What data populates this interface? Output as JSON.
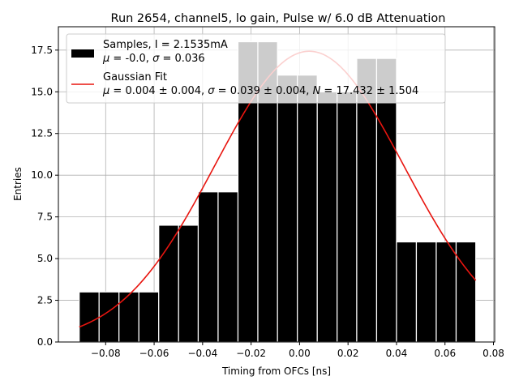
{
  "chart_data": {
    "type": "bar",
    "title": "Run 2654, channel5, lo gain, Pulse w/ 6.0 dB Attenuation",
    "xlabel": "Timing from OFCs [ns]",
    "ylabel": "Entries",
    "xlim": [
      -0.0995,
      0.0805
    ],
    "ylim": [
      0,
      18.9
    ],
    "grid": true,
    "legend_position": "top-left",
    "x_ticks": [
      -0.08,
      -0.06,
      -0.04,
      -0.02,
      0.0,
      0.02,
      0.04,
      0.06,
      0.08
    ],
    "x_tick_labels": [
      "−0.08",
      "−0.06",
      "−0.04",
      "−0.02",
      "0.00",
      "0.02",
      "0.04",
      "0.06",
      "0.08"
    ],
    "y_ticks": [
      0.0,
      2.5,
      5.0,
      7.5,
      10.0,
      12.5,
      15.0,
      17.5
    ],
    "y_tick_labels": [
      "0.0",
      "2.5",
      "5.0",
      "7.5",
      "10.0",
      "12.5",
      "15.0",
      "17.5"
    ],
    "histogram": {
      "name": "Samples",
      "bin_edges": [
        -0.0909,
        -0.0745,
        -0.0581,
        -0.0418,
        -0.0254,
        -0.0091,
        0.0073,
        0.0236,
        0.04,
        0.0564,
        0.0727
      ],
      "sub_edges": [
        -0.0909,
        -0.0827,
        -0.0745,
        -0.0663,
        -0.0581,
        -0.0499,
        -0.0418,
        -0.0336,
        -0.0254,
        -0.0172,
        -0.0091,
        -0.0009,
        0.0073,
        0.0155,
        0.0236,
        0.0318,
        0.04,
        0.0482,
        0.0564,
        0.0646,
        0.0727
      ],
      "values": [
        3,
        3,
        7,
        9,
        18,
        16,
        15,
        17,
        6,
        6
      ],
      "color": "#000000",
      "edge_color": "#ffffff"
    },
    "fit": {
      "name": "Gaussian Fit",
      "mu": 0.004,
      "sigma": 0.039,
      "N": 17.432,
      "x_range": [
        -0.0909,
        0.0727
      ],
      "color": "#e8150f"
    },
    "legend": {
      "hist_line1": "Samples, I = 2.1535mA",
      "hist_mu": "μ",
      "hist_line2_a": " = -0.0, ",
      "hist_sigma": "σ",
      "hist_line2_b": " = 0.036",
      "fit_line1": "Gaussian Fit",
      "fit_mu": "μ",
      "fit_line2_a": " = 0.004 ± 0.004, ",
      "fit_sigma": "σ",
      "fit_line2_b": " = 0.039 ± 0.004, ",
      "fit_N": "N",
      "fit_line2_c": " = 17.432 ± 1.504"
    }
  }
}
